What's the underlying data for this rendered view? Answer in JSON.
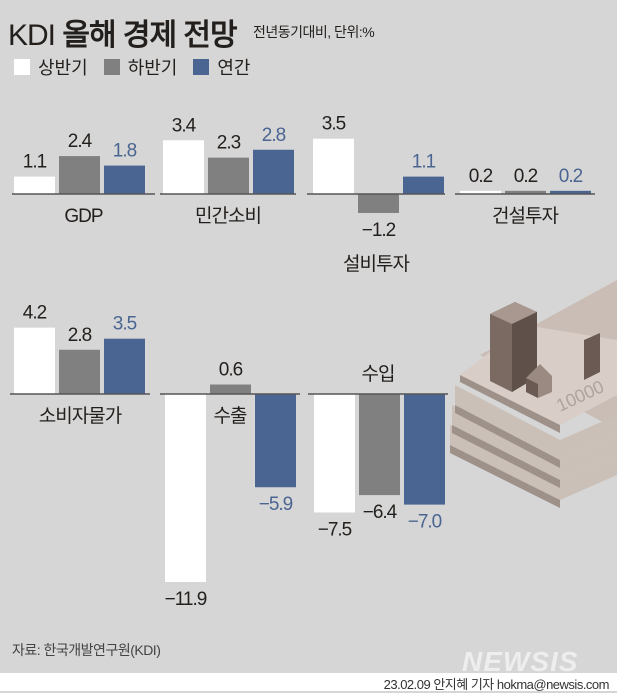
{
  "title_prefix": "KDI",
  "title_main": "올해 경제 전망",
  "subtitle": "전년동기대비, 단위:%",
  "source": "자료: 한국개발연구원(KDI)",
  "credit": "23.02.09 안지혜 기자 hokma@newsis.com",
  "logo": "NEWSIS",
  "colors": {
    "first_half": "#ffffff",
    "second_half": "#808080",
    "annual": "#4a6591",
    "background": "#d6d6d6"
  },
  "chart_data": {
    "type": "bar",
    "unit": "%",
    "legend": [
      "상반기",
      "하반기",
      "연간"
    ],
    "legend_placement": "top-left",
    "groups": [
      {
        "category": "GDP",
        "values": [
          1.1,
          2.4,
          1.8
        ],
        "labels": [
          "1.1",
          "2.4",
          "1.8"
        ]
      },
      {
        "category": "민간소비",
        "values": [
          3.4,
          2.3,
          2.8
        ],
        "labels": [
          "3.4",
          "2.3",
          "2.8"
        ]
      },
      {
        "category": "설비투자",
        "values": [
          3.5,
          -1.2,
          1.1
        ],
        "labels": [
          "3.5",
          "−1.2",
          "1.1"
        ]
      },
      {
        "category": "건설투자",
        "values": [
          0.2,
          0.2,
          0.2
        ],
        "labels": [
          "0.2",
          "0.2",
          "0.2"
        ]
      },
      {
        "category": "소비자물가",
        "values": [
          4.2,
          2.8,
          3.5
        ],
        "labels": [
          "4.2",
          "2.8",
          "3.5"
        ]
      },
      {
        "category": "수출",
        "values": [
          -11.9,
          0.6,
          -5.9
        ],
        "labels": [
          "−11.9",
          "0.6",
          "−5.9"
        ]
      },
      {
        "category": "수입",
        "values": [
          -7.5,
          -6.4,
          -7.0
        ],
        "labels": [
          "−7.5",
          "−6.4",
          "−7.0"
        ]
      }
    ]
  }
}
